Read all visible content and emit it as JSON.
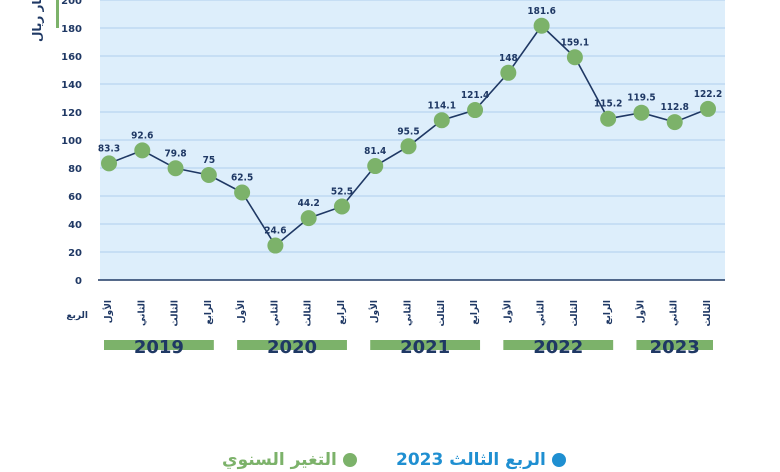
{
  "chart_data": {
    "type": "area",
    "ylabel": "مليار ريال",
    "ylim": [
      0,
      200
    ],
    "yticks": [
      0,
      20,
      40,
      60,
      80,
      100,
      120,
      140,
      160,
      180,
      200
    ],
    "grid": true,
    "x_axis_caption": "الربع",
    "categories": [
      "الأول",
      "الثاني",
      "الثالث",
      "الرابع",
      "الأول",
      "الثاني",
      "الثالث",
      "الرابع",
      "الأول",
      "الثاني",
      "الثالث",
      "الرابع",
      "الأول",
      "الثاني",
      "الثالث",
      "الرابع",
      "الأول",
      "الثاني",
      "الثالث"
    ],
    "years": [
      {
        "label": "2019",
        "quarters": 4
      },
      {
        "label": "2020",
        "quarters": 4
      },
      {
        "label": "2021",
        "quarters": 4
      },
      {
        "label": "2022",
        "quarters": 4
      },
      {
        "label": "2023",
        "quarters": 3
      }
    ],
    "series": [
      {
        "values": [
          83.3,
          92.6,
          79.8,
          75,
          62.5,
          24.6,
          44.2,
          52.5,
          81.4,
          95.5,
          114.1,
          121.4,
          148,
          181.6,
          159.1,
          115.2,
          119.5,
          112.8,
          122.2
        ],
        "value_labels": [
          "83.3",
          "92.6",
          "79.8",
          "75",
          "62.5",
          "24.6",
          "44.2",
          "52.5",
          "81.4",
          "95.5",
          "114.1",
          "121.4",
          "148",
          "181.6",
          "159.1",
          "115.2",
          "119.5",
          "112.8",
          "122.2"
        ]
      }
    ]
  },
  "colors": {
    "line": "#1f3864",
    "area": "#ddeefb",
    "marker": "#7cb26a",
    "year_bar": "#7cb26a",
    "label": "#1f3864",
    "grid": "#9fc5e8"
  },
  "legend": {
    "q3_label": "الربع الثالث 2023",
    "annual_label": "التغير السنوي"
  }
}
